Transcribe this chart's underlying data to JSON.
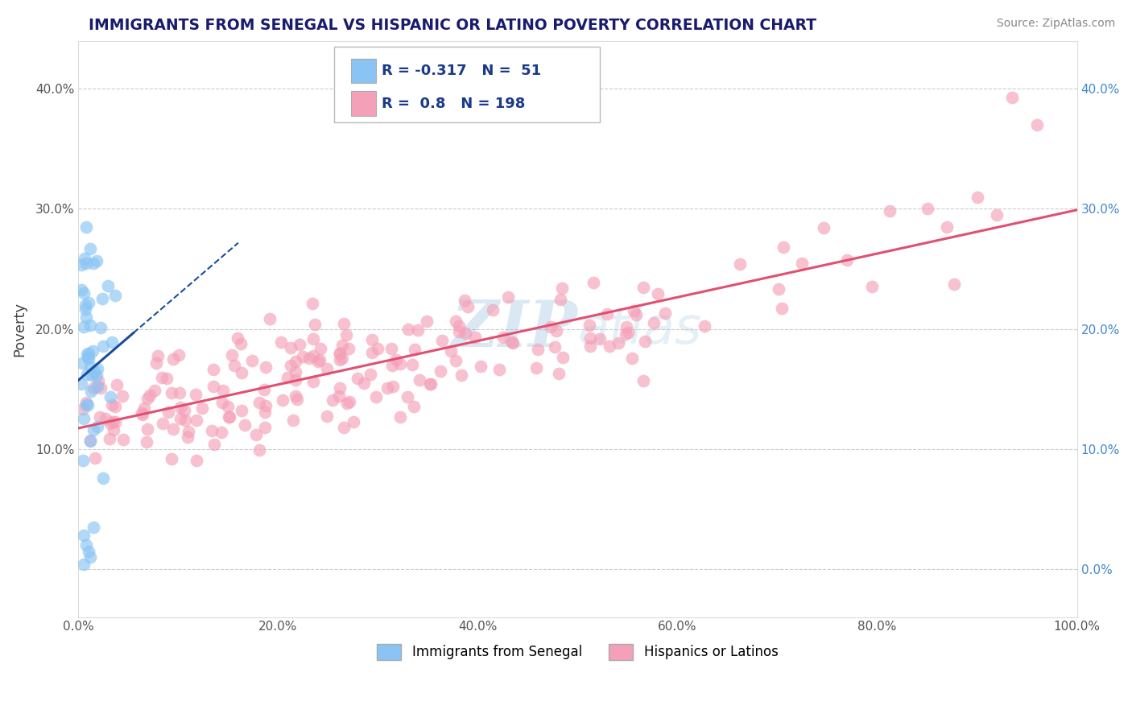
{
  "title": "IMMIGRANTS FROM SENEGAL VS HISPANIC OR LATINO POVERTY CORRELATION CHART",
  "source": "Source: ZipAtlas.com",
  "ylabel": "Poverty",
  "legend_blue_label": "Immigrants from Senegal",
  "legend_pink_label": "Hispanics or Latinos",
  "blue_R": -0.317,
  "blue_N": 51,
  "pink_R": 0.8,
  "pink_N": 198,
  "xlim": [
    0.0,
    1.0
  ],
  "ylim": [
    -0.04,
    0.44
  ],
  "x_ticks": [
    0.0,
    0.2,
    0.4,
    0.6,
    0.8,
    1.0
  ],
  "x_tick_labels": [
    "0.0%",
    "20.0%",
    "40.0%",
    "60.0%",
    "80.0%",
    "100.0%"
  ],
  "y_ticks": [
    0.0,
    0.1,
    0.2,
    0.3,
    0.4
  ],
  "y_tick_labels_left": [
    "",
    "10.0%",
    "20.0%",
    "30.0%",
    "40.0%"
  ],
  "y_tick_labels_right": [
    "0.0%",
    "10.0%",
    "20.0%",
    "30.0%",
    "40.0%"
  ],
  "blue_scatter_color": "#89C4F4",
  "pink_scatter_color": "#F4A0B8",
  "blue_line_color": "#1A4C9E",
  "pink_line_color": "#E05070",
  "background_color": "#FFFFFF",
  "grid_color": "#CCCCCC",
  "title_color": "#1a1a6e",
  "source_color": "#888888",
  "right_axis_color": "#4488CC",
  "legend_text_color": "#1a3a8a",
  "watermark_color_1": "#7BAFD4",
  "watermark_color_2": "#A0C8E8"
}
